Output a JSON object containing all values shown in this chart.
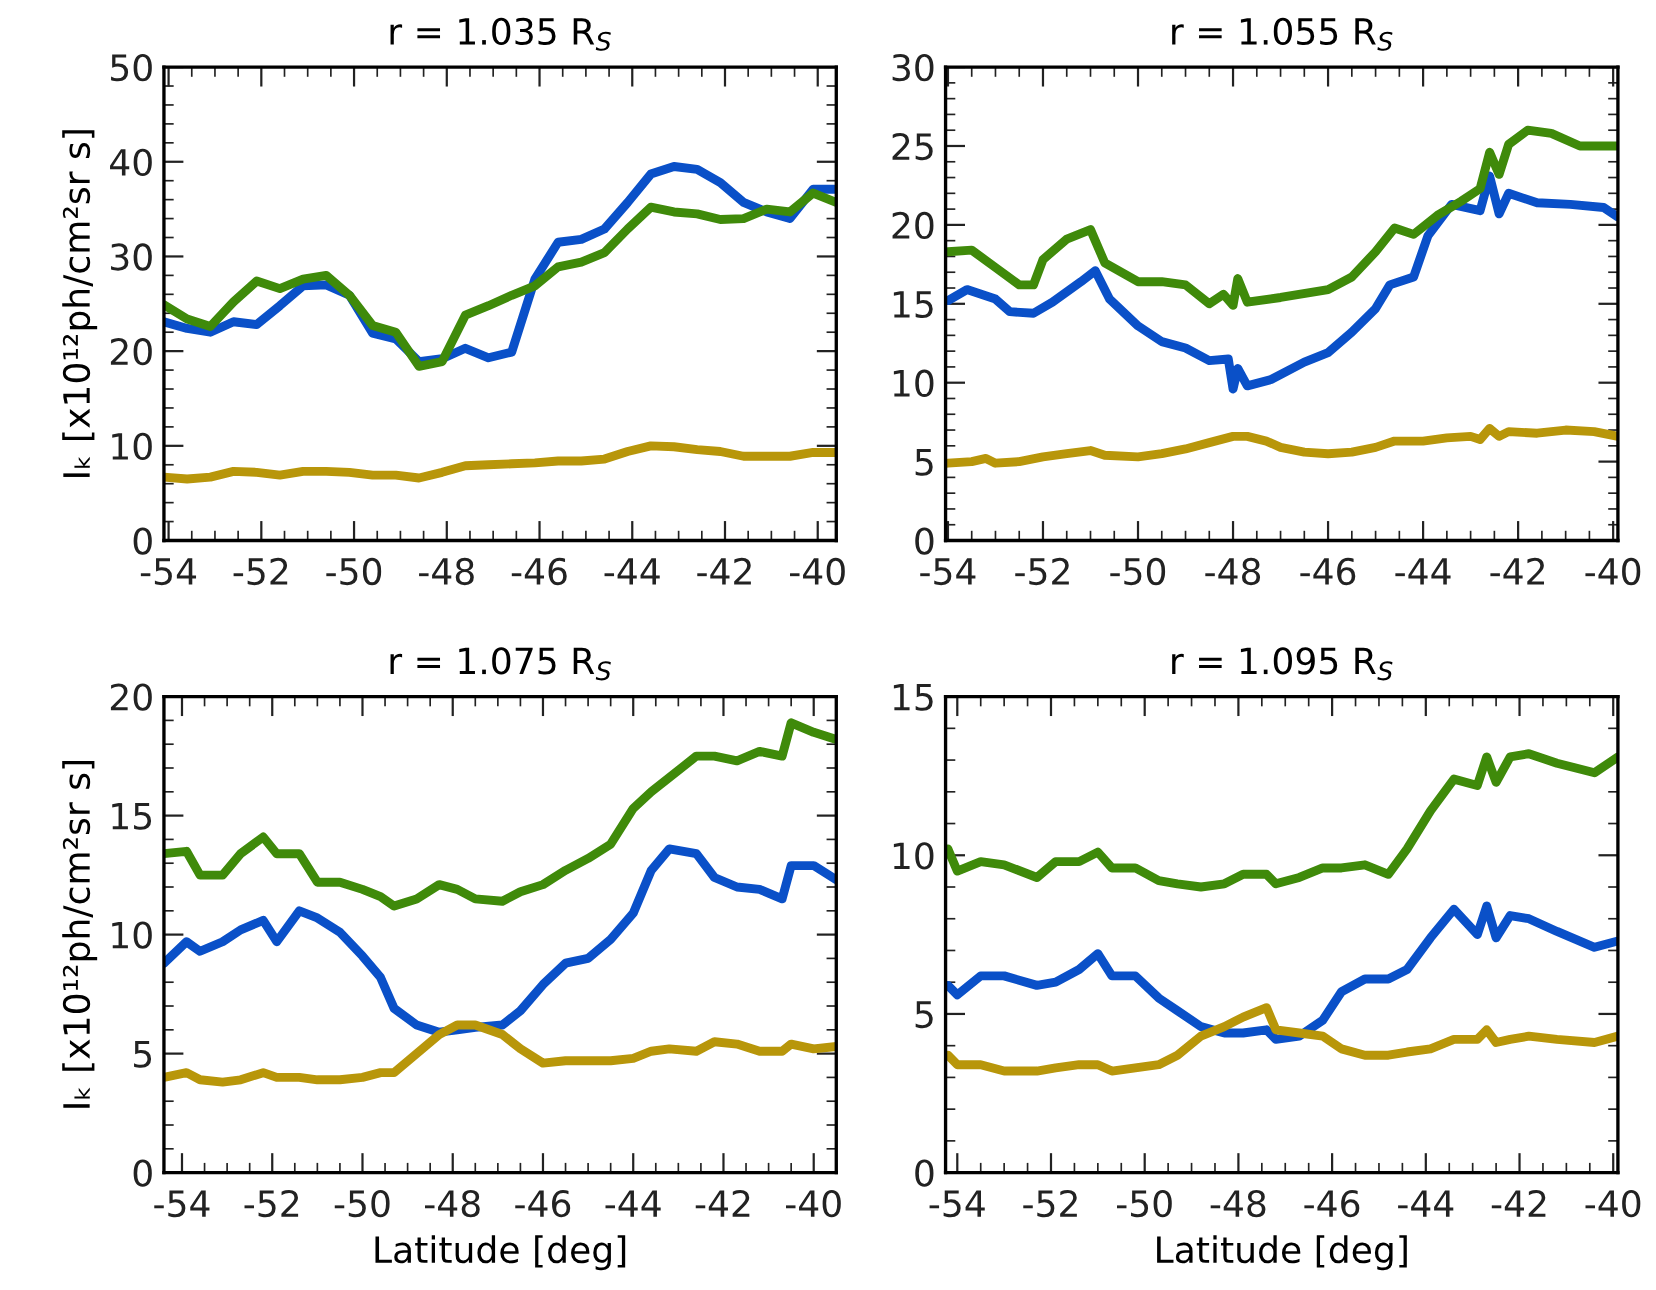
{
  "chart_data": [
    {
      "type": "line",
      "title": "r = 1.035 R$_{S}$",
      "ylabel": "Iₖ [x10¹²ph/cm²sr s]",
      "xlim": [
        -54.1,
        -39.6
      ],
      "xticks": [
        -54,
        -52,
        -50,
        -48,
        -46,
        -44,
        -42,
        -40
      ],
      "ylim": [
        0,
        50
      ],
      "yticks": [
        0,
        10,
        20,
        30,
        40,
        50
      ],
      "series": [
        {
          "color": "#0a50c8",
          "x": [
            -54.1,
            -53.6,
            -53.1,
            -52.6,
            -52.1,
            -51.6,
            -51.1,
            -50.6,
            -50.1,
            -49.6,
            -49.1,
            -48.6,
            -48.1,
            -47.6,
            -47.1,
            -46.6,
            -46.1,
            -45.6,
            -45.1,
            -44.6,
            -44.1,
            -43.6,
            -43.1,
            -42.6,
            -42.1,
            -41.6,
            -41.1,
            -40.6,
            -40.1,
            -39.6
          ],
          "values": [
            23.1,
            22.4,
            22.0,
            23.1,
            22.8,
            24.8,
            26.9,
            27.0,
            25.9,
            21.9,
            21.3,
            18.9,
            19.2,
            20.3,
            19.3,
            19.9,
            27.6,
            31.5,
            31.8,
            32.9,
            35.7,
            38.7,
            39.5,
            39.2,
            37.8,
            35.7,
            34.7,
            34.0,
            37.1,
            37.1
          ]
        },
        {
          "color": "#3f8a0a",
          "x": [
            -54.1,
            -53.6,
            -53.1,
            -52.6,
            -52.1,
            -51.6,
            -51.1,
            -50.6,
            -50.1,
            -49.6,
            -49.1,
            -48.6,
            -48.1,
            -47.6,
            -47.1,
            -46.6,
            -46.1,
            -45.6,
            -45.1,
            -44.6,
            -44.1,
            -43.6,
            -43.1,
            -42.6,
            -42.1,
            -41.6,
            -41.1,
            -40.6,
            -40.1,
            -39.6
          ],
          "values": [
            24.9,
            23.4,
            22.6,
            25.2,
            27.4,
            26.6,
            27.6,
            28.0,
            25.9,
            22.7,
            22.0,
            18.4,
            18.9,
            23.8,
            24.8,
            25.9,
            26.9,
            28.9,
            29.4,
            30.4,
            32.9,
            35.2,
            34.7,
            34.5,
            33.9,
            34.0,
            35.0,
            34.7,
            36.7,
            35.7
          ]
        },
        {
          "color": "#b8960a",
          "x": [
            -54.1,
            -53.6,
            -53.1,
            -52.6,
            -52.1,
            -51.6,
            -51.1,
            -50.6,
            -50.1,
            -49.6,
            -49.1,
            -48.6,
            -48.1,
            -47.6,
            -47.1,
            -46.6,
            -46.1,
            -45.6,
            -45.1,
            -44.6,
            -44.1,
            -43.6,
            -43.1,
            -42.6,
            -42.1,
            -41.6,
            -41.1,
            -40.6,
            -40.1,
            -39.6
          ],
          "values": [
            6.7,
            6.5,
            6.7,
            7.3,
            7.2,
            6.9,
            7.3,
            7.3,
            7.2,
            6.9,
            6.9,
            6.6,
            7.2,
            7.9,
            8.0,
            8.1,
            8.2,
            8.4,
            8.4,
            8.6,
            9.4,
            10.0,
            9.9,
            9.6,
            9.4,
            8.9,
            8.9,
            8.9,
            9.3,
            9.3
          ]
        }
      ]
    },
    {
      "type": "line",
      "title": "r = 1.055 R$_{S}$",
      "xlim": [
        -54.05,
        -39.9
      ],
      "xticks": [
        -54,
        -52,
        -50,
        -48,
        -46,
        -44,
        -42,
        -40
      ],
      "ylim": [
        0,
        30
      ],
      "yticks": [
        0,
        5,
        10,
        15,
        20,
        25,
        30
      ],
      "series": [
        {
          "color": "#0a50c8",
          "x": [
            -54.0,
            -53.6,
            -53.0,
            -52.7,
            -52.2,
            -51.8,
            -51.2,
            -50.9,
            -50.6,
            -50.0,
            -49.5,
            -49.0,
            -48.5,
            -48.1,
            -48.0,
            -47.9,
            -47.7,
            -47.2,
            -46.5,
            -46.0,
            -45.5,
            -45.0,
            -44.7,
            -44.2,
            -43.9,
            -43.4,
            -42.8,
            -42.6,
            -42.4,
            -42.2,
            -41.6,
            -40.9,
            -40.2,
            -39.9
          ],
          "values": [
            15.2,
            15.9,
            15.3,
            14.5,
            14.4,
            15.1,
            16.4,
            17.1,
            15.3,
            13.6,
            12.6,
            12.2,
            11.4,
            11.5,
            9.6,
            10.9,
            9.8,
            10.2,
            11.3,
            11.9,
            13.2,
            14.7,
            16.2,
            16.7,
            19.3,
            21.3,
            20.9,
            23.1,
            20.7,
            22.0,
            21.4,
            21.3,
            21.1,
            20.5
          ]
        },
        {
          "color": "#3f8a0a",
          "x": [
            -54.0,
            -53.5,
            -53.0,
            -52.5,
            -52.2,
            -52.0,
            -51.5,
            -51.0,
            -50.7,
            -50.0,
            -49.5,
            -49.0,
            -48.5,
            -48.2,
            -48.0,
            -47.9,
            -47.7,
            -47.0,
            -46.0,
            -45.5,
            -45.0,
            -44.6,
            -44.2,
            -43.7,
            -43.2,
            -42.8,
            -42.6,
            -42.4,
            -42.2,
            -41.8,
            -41.3,
            -40.7,
            -39.9
          ],
          "values": [
            18.3,
            18.4,
            17.3,
            16.2,
            16.2,
            17.8,
            19.1,
            19.7,
            17.6,
            16.4,
            16.4,
            16.2,
            15.0,
            15.6,
            14.9,
            16.6,
            15.1,
            15.4,
            15.9,
            16.7,
            18.3,
            19.8,
            19.4,
            20.6,
            21.5,
            22.3,
            24.6,
            23.2,
            25.1,
            26.0,
            25.8,
            25.0,
            25.0
          ]
        },
        {
          "color": "#b8960a",
          "x": [
            -54.0,
            -53.5,
            -53.2,
            -53.0,
            -52.5,
            -52.0,
            -51.5,
            -51.0,
            -50.7,
            -50.0,
            -49.5,
            -49.0,
            -48.5,
            -48.0,
            -47.7,
            -47.3,
            -47.0,
            -46.5,
            -46.0,
            -45.5,
            -45.0,
            -44.6,
            -44.0,
            -43.5,
            -43.0,
            -42.8,
            -42.6,
            -42.4,
            -42.2,
            -41.6,
            -41.0,
            -40.4,
            -39.9
          ],
          "values": [
            4.9,
            5.0,
            5.2,
            4.9,
            5.0,
            5.3,
            5.5,
            5.7,
            5.4,
            5.3,
            5.5,
            5.8,
            6.2,
            6.6,
            6.6,
            6.3,
            5.9,
            5.6,
            5.5,
            5.6,
            5.9,
            6.3,
            6.3,
            6.5,
            6.6,
            6.4,
            7.1,
            6.6,
            6.9,
            6.8,
            7.0,
            6.9,
            6.6
          ]
        }
      ]
    },
    {
      "type": "line",
      "title": "r = 1.075 R$_{S}$",
      "xlabel": "Latitude [deg]",
      "ylabel": "Iₖ [x10¹²ph/cm²sr s]",
      "xlim": [
        -54.4,
        -39.5
      ],
      "xticks": [
        -54,
        -52,
        -50,
        -48,
        -46,
        -44,
        -42,
        -40
      ],
      "ylim": [
        0,
        20
      ],
      "yticks": [
        0,
        5,
        10,
        15,
        20
      ],
      "series": [
        {
          "color": "#0a50c8",
          "x": [
            -54.4,
            -53.9,
            -53.6,
            -53.1,
            -52.7,
            -52.2,
            -51.9,
            -51.4,
            -51.0,
            -50.5,
            -50.0,
            -49.6,
            -49.3,
            -48.8,
            -48.3,
            -47.9,
            -47.5,
            -46.9,
            -46.5,
            -46.0,
            -45.5,
            -45.0,
            -44.5,
            -44.0,
            -43.6,
            -43.2,
            -42.6,
            -42.2,
            -41.7,
            -41.2,
            -40.7,
            -40.5,
            -40.0,
            -39.5
          ],
          "values": [
            8.8,
            9.7,
            9.3,
            9.7,
            10.2,
            10.6,
            9.7,
            11.0,
            10.7,
            10.1,
            9.1,
            8.2,
            6.9,
            6.2,
            5.9,
            6.0,
            6.1,
            6.2,
            6.8,
            7.9,
            8.8,
            9.0,
            9.8,
            10.9,
            12.7,
            13.6,
            13.4,
            12.4,
            12.0,
            11.9,
            11.5,
            12.9,
            12.9,
            12.3
          ]
        },
        {
          "color": "#3f8a0a",
          "x": [
            -54.4,
            -53.9,
            -53.6,
            -53.1,
            -52.7,
            -52.2,
            -51.9,
            -51.4,
            -51.0,
            -50.5,
            -50.0,
            -49.6,
            -49.3,
            -48.8,
            -48.3,
            -47.9,
            -47.5,
            -46.9,
            -46.5,
            -46.0,
            -45.5,
            -45.0,
            -44.5,
            -44.0,
            -43.6,
            -43.2,
            -42.6,
            -42.2,
            -41.7,
            -41.2,
            -40.7,
            -40.5,
            -40.0,
            -39.5
          ],
          "values": [
            13.4,
            13.5,
            12.5,
            12.5,
            13.4,
            14.1,
            13.4,
            13.4,
            12.2,
            12.2,
            11.9,
            11.6,
            11.2,
            11.5,
            12.1,
            11.9,
            11.5,
            11.4,
            11.8,
            12.1,
            12.7,
            13.2,
            13.8,
            15.3,
            16.0,
            16.6,
            17.5,
            17.5,
            17.3,
            17.7,
            17.5,
            18.9,
            18.5,
            18.2
          ]
        },
        {
          "color": "#b8960a",
          "x": [
            -54.4,
            -53.9,
            -53.6,
            -53.1,
            -52.7,
            -52.2,
            -51.9,
            -51.4,
            -51.0,
            -50.5,
            -50.0,
            -49.6,
            -49.3,
            -48.8,
            -48.3,
            -47.9,
            -47.5,
            -46.9,
            -46.5,
            -46.0,
            -45.5,
            -45.0,
            -44.5,
            -44.0,
            -43.6,
            -43.2,
            -42.6,
            -42.2,
            -41.7,
            -41.2,
            -40.7,
            -40.5,
            -40.0,
            -39.5
          ],
          "values": [
            4.0,
            4.2,
            3.9,
            3.8,
            3.9,
            4.2,
            4.0,
            4.0,
            3.9,
            3.9,
            4.0,
            4.2,
            4.2,
            5.0,
            5.8,
            6.2,
            6.2,
            5.8,
            5.2,
            4.6,
            4.7,
            4.7,
            4.7,
            4.8,
            5.1,
            5.2,
            5.1,
            5.5,
            5.4,
            5.1,
            5.1,
            5.4,
            5.2,
            5.3
          ]
        }
      ]
    },
    {
      "type": "line",
      "title": "r = 1.095 R$_{S}$",
      "xlabel": "Latitude [deg]",
      "xlim": [
        -54.25,
        -39.9
      ],
      "xticks": [
        -54,
        -52,
        -50,
        -48,
        -46,
        -44,
        -42,
        -40
      ],
      "ylim": [
        0,
        15
      ],
      "yticks": [
        0,
        5,
        10,
        15
      ],
      "series": [
        {
          "color": "#0a50c8",
          "x": [
            -54.2,
            -54.0,
            -53.5,
            -53.0,
            -52.3,
            -51.9,
            -51.4,
            -51.0,
            -50.7,
            -50.2,
            -49.7,
            -49.3,
            -48.8,
            -48.3,
            -47.9,
            -47.4,
            -47.2,
            -46.7,
            -46.2,
            -45.8,
            -45.3,
            -44.8,
            -44.4,
            -43.9,
            -43.4,
            -42.9,
            -42.7,
            -42.5,
            -42.2,
            -41.8,
            -41.2,
            -40.4,
            -39.9
          ],
          "values": [
            5.9,
            5.6,
            6.2,
            6.2,
            5.9,
            6.0,
            6.4,
            6.9,
            6.2,
            6.2,
            5.5,
            5.1,
            4.6,
            4.4,
            4.4,
            4.5,
            4.2,
            4.3,
            4.8,
            5.7,
            6.1,
            6.1,
            6.4,
            7.4,
            8.3,
            7.5,
            8.4,
            7.4,
            8.1,
            8.0,
            7.6,
            7.1,
            7.3
          ]
        },
        {
          "color": "#3f8a0a",
          "x": [
            -54.2,
            -54.0,
            -53.5,
            -53.0,
            -52.3,
            -51.9,
            -51.4,
            -51.0,
            -50.7,
            -50.2,
            -49.7,
            -49.3,
            -48.8,
            -48.3,
            -47.9,
            -47.4,
            -47.2,
            -46.7,
            -46.2,
            -45.8,
            -45.3,
            -44.8,
            -44.4,
            -43.9,
            -43.4,
            -42.9,
            -42.7,
            -42.5,
            -42.2,
            -41.8,
            -41.2,
            -40.4,
            -39.9
          ],
          "values": [
            10.2,
            9.5,
            9.8,
            9.7,
            9.3,
            9.8,
            9.8,
            10.1,
            9.6,
            9.6,
            9.2,
            9.1,
            9.0,
            9.1,
            9.4,
            9.4,
            9.1,
            9.3,
            9.6,
            9.6,
            9.7,
            9.4,
            10.2,
            11.4,
            12.4,
            12.2,
            13.1,
            12.3,
            13.1,
            13.2,
            12.9,
            12.6,
            13.1
          ]
        },
        {
          "color": "#b8960a",
          "x": [
            -54.2,
            -54.0,
            -53.5,
            -53.0,
            -52.3,
            -51.9,
            -51.4,
            -51.0,
            -50.7,
            -50.2,
            -49.7,
            -49.3,
            -48.8,
            -48.3,
            -47.9,
            -47.4,
            -47.2,
            -46.7,
            -46.2,
            -45.8,
            -45.3,
            -44.8,
            -44.4,
            -43.9,
            -43.4,
            -42.9,
            -42.7,
            -42.5,
            -42.2,
            -41.8,
            -41.2,
            -40.4,
            -39.9
          ],
          "values": [
            3.7,
            3.4,
            3.4,
            3.2,
            3.2,
            3.3,
            3.4,
            3.4,
            3.2,
            3.3,
            3.4,
            3.7,
            4.3,
            4.6,
            4.9,
            5.2,
            4.5,
            4.4,
            4.3,
            3.9,
            3.7,
            3.7,
            3.8,
            3.9,
            4.2,
            4.2,
            4.5,
            4.1,
            4.2,
            4.3,
            4.2,
            4.1,
            4.3
          ]
        }
      ]
    }
  ]
}
